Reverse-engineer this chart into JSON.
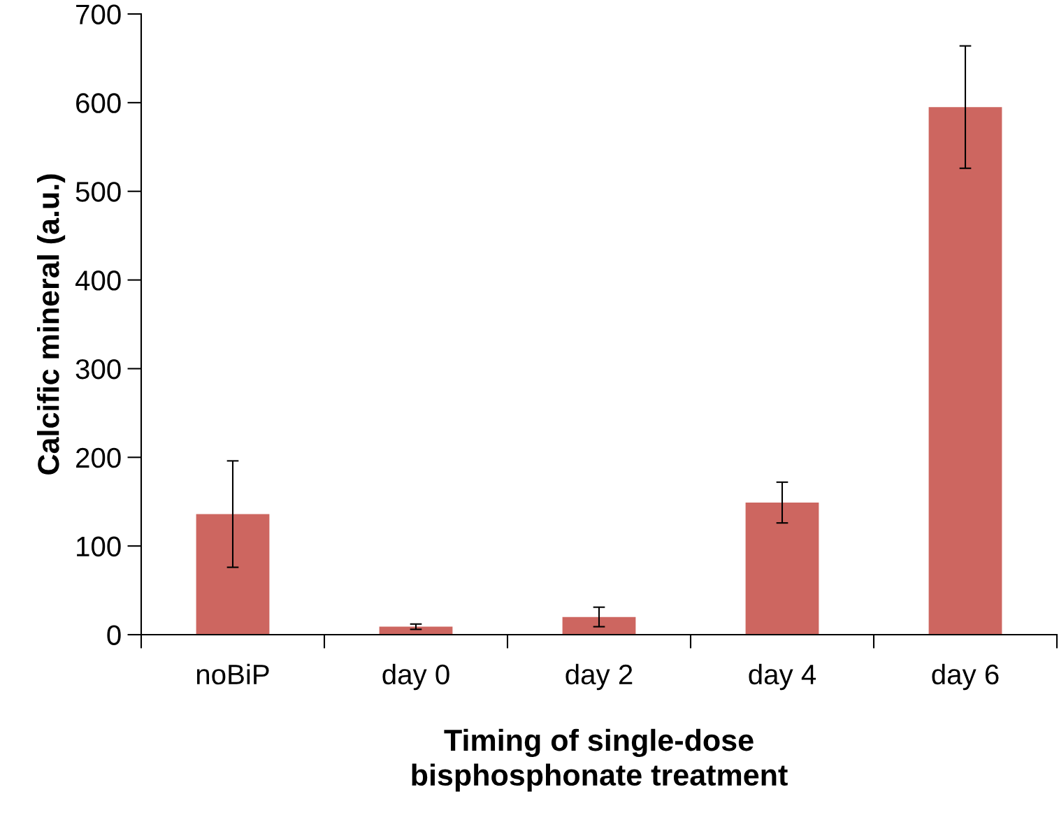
{
  "chart_data": {
    "type": "bar",
    "xlabel": "Timing of single-dose\nbisphosphonate treatment",
    "ylabel": "Calcific mineral (a.u.)",
    "categories": [
      "noBiP",
      "day 0",
      "day 2",
      "day 4",
      "day 6"
    ],
    "values": [
      136,
      9,
      20,
      149,
      595
    ],
    "errors": [
      60,
      3,
      11,
      23,
      69
    ],
    "color": "#cd6660",
    "ylim": [
      0,
      700
    ],
    "yticks": [
      0,
      100,
      200,
      300,
      400,
      500,
      600,
      700
    ],
    "grid": false,
    "legend": false
  }
}
